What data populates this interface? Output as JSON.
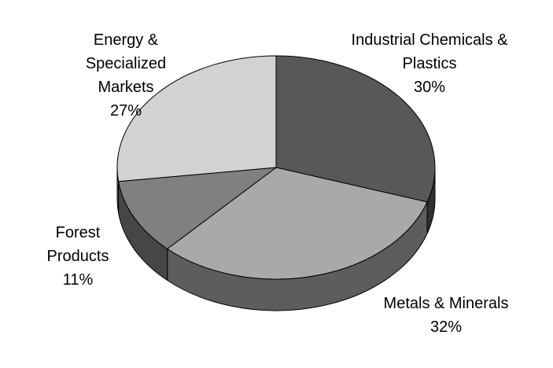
{
  "chart_data": {
    "type": "pie3d",
    "categories": [
      "Industrial Chemicals & Plastics",
      "Metals & Minerals",
      "Forest Products",
      "Energy & Specialized Markets"
    ],
    "values": [
      30,
      32,
      11,
      27
    ],
    "value_labels": [
      "30%",
      "32%",
      "11%",
      "27%"
    ],
    "colors": [
      "#585858",
      "#a9a9a9",
      "#808080",
      "#d2d2d2"
    ]
  }
}
